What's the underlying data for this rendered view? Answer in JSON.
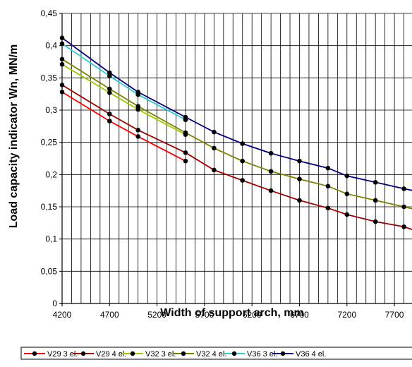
{
  "chart_data": {
    "type": "line",
    "xlabel": "Width of support arch, mm",
    "ylabel": "Load capacity indicator Wn, MN/m",
    "x_ticks": [
      "4200",
      "4700",
      "5200",
      "5700",
      "6200",
      "6700",
      "7200",
      "7700"
    ],
    "y_ticks": [
      "0",
      "0,05",
      "0,1",
      "0,15",
      "0,2",
      "0,25",
      "0,3",
      "0,35",
      "0,4",
      "0,45"
    ],
    "xlim": [
      4200,
      8000
    ],
    "ylim": [
      0,
      0.45
    ],
    "grid": true,
    "legend_position": "bottom",
    "series": [
      {
        "name": "V29 3 el.",
        "color": "#ff0000",
        "x": [
          4200,
          4700,
          5000,
          5500
        ],
        "y": [
          0.328,
          0.283,
          0.259,
          0.221
        ]
      },
      {
        "name": "V29 4 el.",
        "color": "#a00000",
        "x": [
          4200,
          4700,
          5000,
          5500,
          5800,
          6100,
          6400,
          6700,
          7000,
          7200,
          7500,
          7800,
          8000
        ],
        "y": [
          0.339,
          0.294,
          0.269,
          0.234,
          0.207,
          0.191,
          0.175,
          0.16,
          0.148,
          0.138,
          0.127,
          0.119,
          0.109
        ]
      },
      {
        "name": "V32 3 el.",
        "color": "#99cc00",
        "x": [
          4200,
          4700,
          5000,
          5500
        ],
        "y": [
          0.371,
          0.327,
          0.301,
          0.262
        ]
      },
      {
        "name": "V32 4 el.",
        "color": "#808000",
        "x": [
          4200,
          4700,
          5000,
          5500,
          5800,
          6100,
          6400,
          6700,
          7000,
          7200,
          7500,
          7800,
          8000
        ],
        "y": [
          0.379,
          0.333,
          0.306,
          0.265,
          0.241,
          0.221,
          0.205,
          0.193,
          0.182,
          0.17,
          0.16,
          0.15,
          0.143
        ]
      },
      {
        "name": "V36 3 el.",
        "color": "#33cccc",
        "x": [
          4200,
          4700,
          5000,
          5500
        ],
        "y": [
          0.403,
          0.353,
          0.324,
          0.285
        ]
      },
      {
        "name": "V36 4 el.",
        "color": "#000080",
        "x": [
          4200,
          4700,
          5000,
          5500,
          5800,
          6100,
          6400,
          6700,
          7000,
          7200,
          7500,
          7800,
          8000
        ],
        "y": [
          0.412,
          0.358,
          0.328,
          0.289,
          0.266,
          0.248,
          0.233,
          0.221,
          0.21,
          0.198,
          0.188,
          0.178,
          0.172
        ]
      }
    ]
  }
}
